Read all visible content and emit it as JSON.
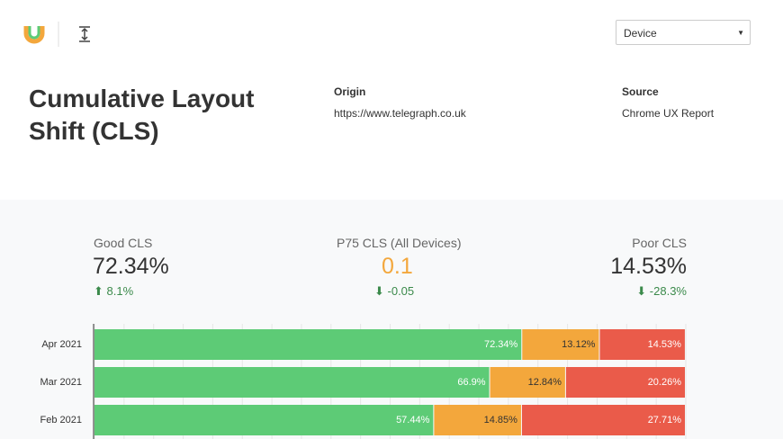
{
  "header": {
    "dropdown": "Device",
    "title": "Cumulative Layout Shift (CLS)",
    "origin_label": "Origin",
    "origin": "https://www.telegraph.co.uk",
    "source_label": "Source",
    "source": "Chrome UX Report"
  },
  "metrics": [
    {
      "label": "Good CLS",
      "value": "72.34%",
      "change": "8.1%"
    },
    {
      "label": "P75 CLS (All Devices)",
      "value": "0.1",
      "change": "-0.05"
    },
    {
      "label": "Poor CLS",
      "value": "14.53%",
      "change": "-28.3%"
    }
  ],
  "chart_data": {
    "type": "stacked-barh",
    "categories": [
      "Apr 2021",
      "Mar 2021",
      "Feb 2021"
    ],
    "series": [
      {
        "color": "#5dcb76",
        "values": [
          72.34,
          66.9,
          57.44
        ],
        "value_labels": [
          "72.34%",
          "66.9%",
          "57.44%"
        ]
      },
      {
        "color": "#f3a73c",
        "values": [
          13.12,
          12.84,
          14.85
        ],
        "value_labels": [
          "13.12%",
          "12.84%",
          "14.85%"
        ]
      },
      {
        "color": "#ea5b4a",
        "values": [
          14.53,
          20.26,
          27.71
        ],
        "value_labels": [
          "14.53%",
          "20.26%",
          "27.71%"
        ]
      }
    ],
    "xlim": [
      0,
      100
    ],
    "xticks": [
      0,
      5,
      10,
      15,
      20,
      25,
      30,
      35,
      40,
      45,
      50,
      55,
      60,
      65,
      70,
      75,
      80,
      85,
      90,
      95,
      100
    ],
    "grid": true
  }
}
